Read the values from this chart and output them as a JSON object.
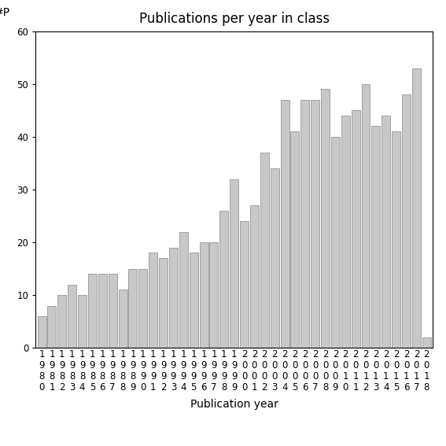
{
  "title": "Publications per year in class",
  "xlabel": "Publication year",
  "ylabel": "#P",
  "years": [
    1980,
    1981,
    1982,
    1983,
    1984,
    1985,
    1986,
    1987,
    1988,
    1989,
    1990,
    1991,
    1992,
    1993,
    1994,
    1995,
    1996,
    1997,
    1998,
    1999,
    2000,
    2001,
    2002,
    2003,
    2004,
    2005,
    2006,
    2007,
    2008,
    2009,
    2010,
    2011,
    2012,
    2013,
    2014,
    2015,
    2016,
    2017,
    2018
  ],
  "values": [
    6,
    8,
    10,
    12,
    10,
    14,
    14,
    14,
    11,
    15,
    15,
    18,
    17,
    19,
    22,
    18,
    20,
    20,
    26,
    32,
    24,
    27,
    37,
    34,
    47,
    41,
    47,
    47,
    49,
    40,
    44,
    45,
    50,
    42,
    44,
    41,
    48,
    53,
    2
  ],
  "bar_color": "#c8c8c8",
  "bar_edge_color": "#888888",
  "ylim": [
    0,
    60
  ],
  "yticks": [
    0,
    10,
    20,
    30,
    40,
    50,
    60
  ],
  "background_color": "#ffffff",
  "title_fontsize": 12,
  "axis_label_fontsize": 10,
  "tick_fontsize": 8.5
}
